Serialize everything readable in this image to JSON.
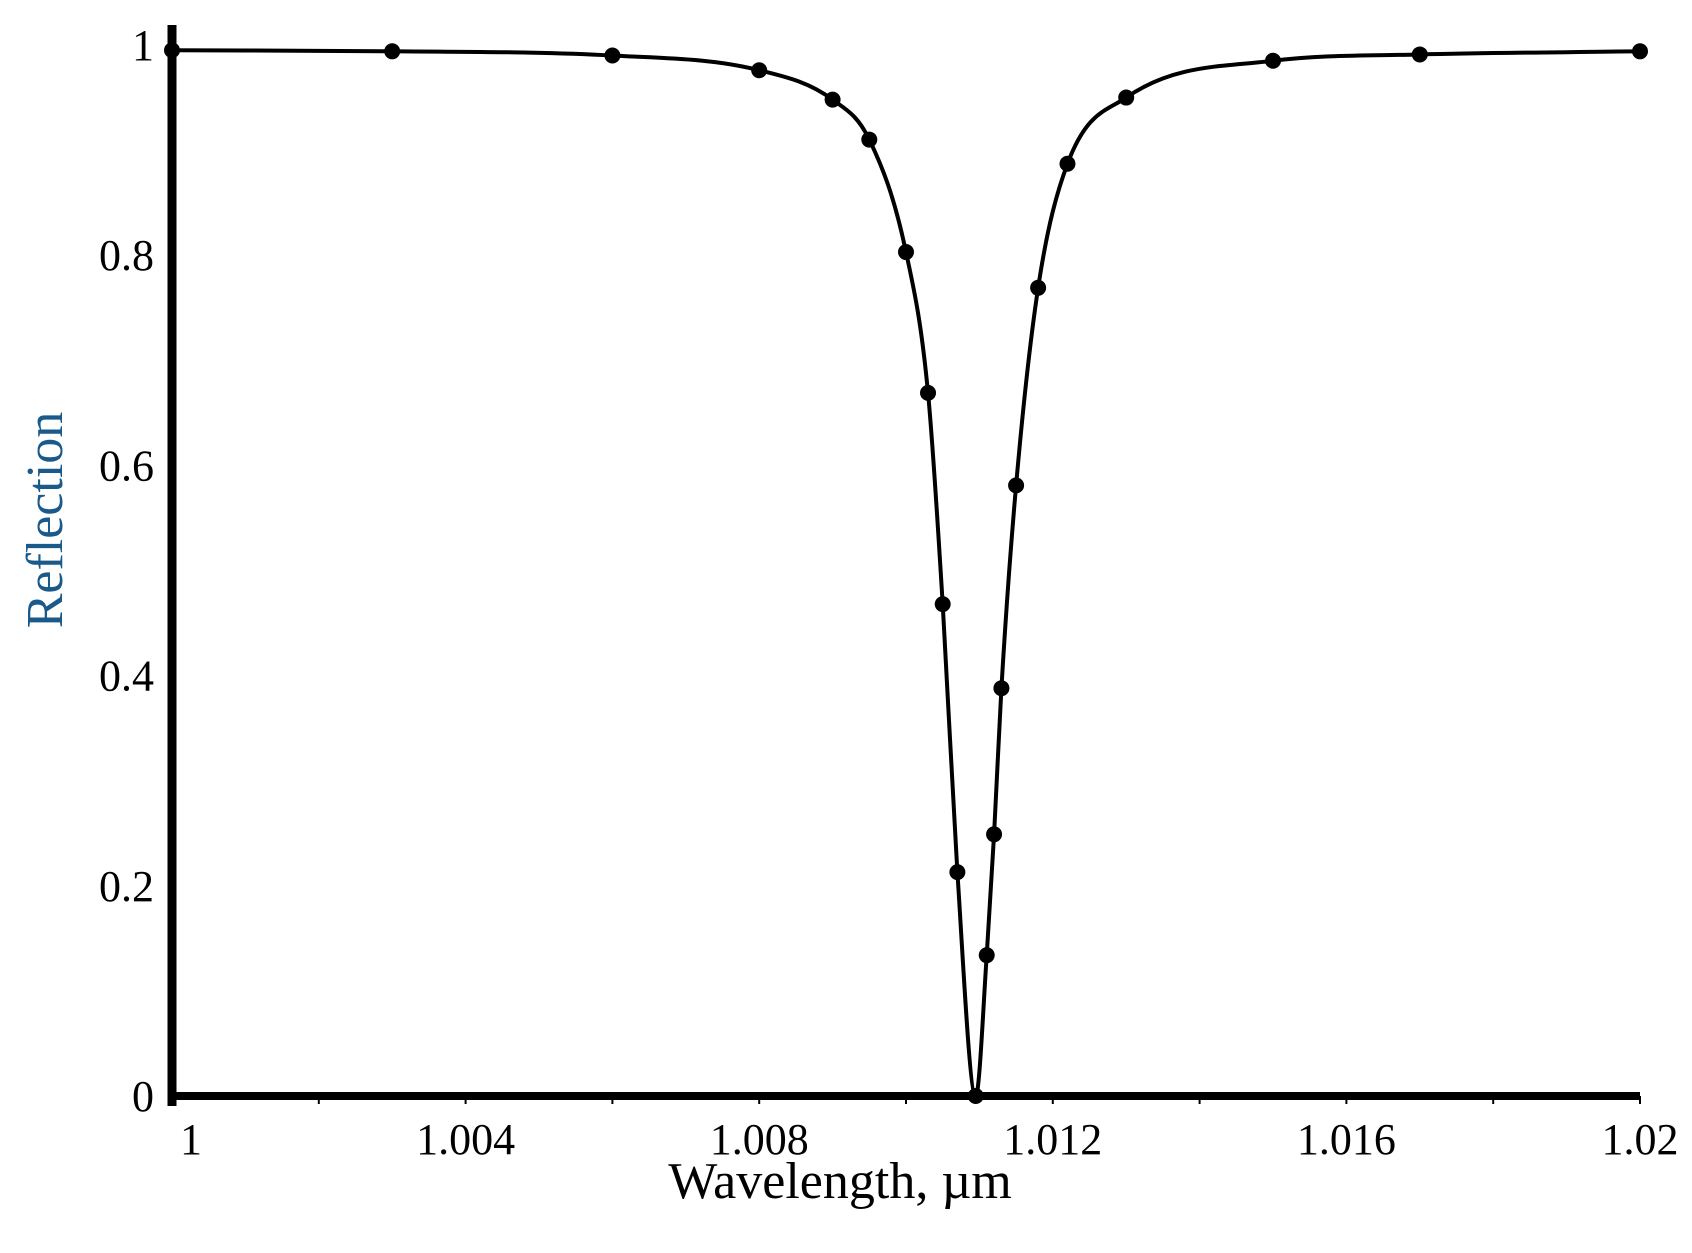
{
  "chart_data": {
    "type": "line",
    "title": "",
    "xlabel": "Wavelength, µm",
    "ylabel": "Reflection",
    "xlim": [
      1.0,
      1.02
    ],
    "ylim": [
      0,
      1
    ],
    "xticks": [
      "1",
      "1.004",
      "1.008",
      "1.012",
      "1.016",
      "1.02"
    ],
    "yticks": [
      "0",
      "0.2",
      "0.4",
      "0.6",
      "0.8",
      "1"
    ],
    "grid": false,
    "legend": null,
    "colors": {
      "line": "#000000",
      "ylabel": "#1a5a8a",
      "xlabel": "#000000"
    },
    "series": [
      {
        "name": "Reflection",
        "marker": "circle",
        "x": [
          1.0,
          1.003,
          1.006,
          1.008,
          1.009,
          1.0095,
          1.01,
          1.0103,
          1.0105,
          1.0107,
          1.01095,
          1.0111,
          1.0112,
          1.0113,
          1.0115,
          1.0118,
          1.0122,
          1.013,
          1.015,
          1.017,
          1.02
        ],
        "y": [
          0.995,
          0.994,
          0.99,
          0.976,
          0.948,
          0.91,
          0.803,
          0.669,
          0.468,
          0.213,
          0.0,
          0.134,
          0.249,
          0.388,
          0.581,
          0.769,
          0.887,
          0.95,
          0.985,
          0.991,
          0.994
        ]
      }
    ]
  }
}
